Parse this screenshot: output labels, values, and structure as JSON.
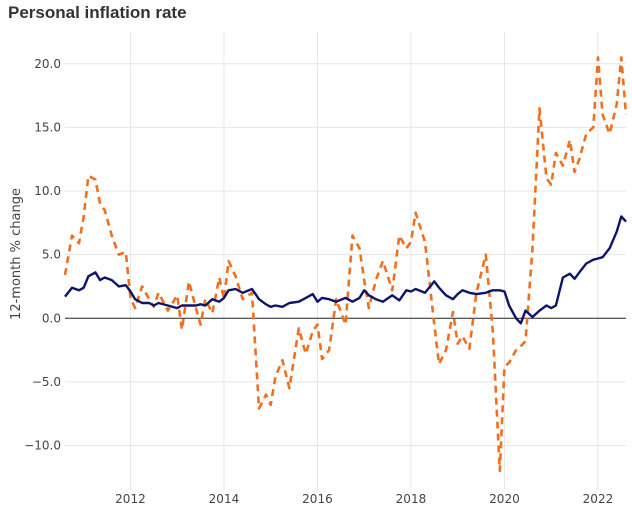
{
  "chart_data": {
    "type": "line",
    "title": "Personal inflation rate",
    "xlabel": "",
    "ylabel": "12-month % change",
    "xlim": [
      2010.6,
      2022.6
    ],
    "ylim": [
      -13.5,
      22.5
    ],
    "grid": true,
    "x_ticks": [
      2012,
      2014,
      2016,
      2018,
      2020,
      2022
    ],
    "y_ticks": [
      20.0,
      15.0,
      10.0,
      5.0,
      0.0,
      -5.0,
      -10.0
    ],
    "x_tick_labels": [
      "2012",
      "2014",
      "2016",
      "2018",
      "2020",
      "2022"
    ],
    "y_tick_labels": [
      "20.0",
      "15.0",
      "10.0",
      "5.0",
      "0.0",
      "−5.0",
      "−10.0"
    ],
    "colors": {
      "series_1": "#0d1469",
      "series_2": "#f07020"
    },
    "series": [
      {
        "style": "solid",
        "color": "#0d1469",
        "x": [
          2010.6,
          2010.75,
          2010.9,
          2011.0,
          2011.1,
          2011.25,
          2011.35,
          2011.45,
          2011.6,
          2011.75,
          2011.9,
          2012.0,
          2012.1,
          2012.25,
          2012.4,
          2012.5,
          2012.6,
          2012.8,
          2013.0,
          2013.1,
          2013.25,
          2013.4,
          2013.5,
          2013.6,
          2013.75,
          2013.9,
          2014.0,
          2014.1,
          2014.25,
          2014.4,
          2014.6,
          2014.75,
          2014.9,
          2015.0,
          2015.1,
          2015.25,
          2015.4,
          2015.6,
          2015.75,
          2015.9,
          2016.0,
          2016.1,
          2016.25,
          2016.4,
          2016.6,
          2016.75,
          2016.9,
          2017.0,
          2017.1,
          2017.25,
          2017.4,
          2017.6,
          2017.75,
          2017.9,
          2018.0,
          2018.1,
          2018.3,
          2018.5,
          2018.6,
          2018.75,
          2018.9,
          2019.0,
          2019.1,
          2019.25,
          2019.4,
          2019.6,
          2019.75,
          2019.9,
          2020.0,
          2020.1,
          2020.25,
          2020.35,
          2020.45,
          2020.6,
          2020.75,
          2020.9,
          2021.0,
          2021.1,
          2021.25,
          2021.4,
          2021.5,
          2021.6,
          2021.75,
          2021.9,
          2022.0,
          2022.1,
          2022.25,
          2022.4,
          2022.5,
          2022.6
        ],
        "y": [
          1.7,
          2.4,
          2.2,
          2.4,
          3.3,
          3.6,
          3.0,
          3.2,
          3.0,
          2.5,
          2.6,
          2.1,
          1.5,
          1.2,
          1.2,
          1.0,
          1.2,
          1.0,
          0.8,
          1.0,
          1.0,
          1.0,
          1.1,
          1.0,
          1.5,
          1.3,
          1.6,
          2.2,
          2.3,
          2.0,
          2.3,
          1.5,
          1.1,
          0.9,
          1.0,
          0.9,
          1.2,
          1.3,
          1.6,
          1.9,
          1.3,
          1.6,
          1.5,
          1.3,
          1.6,
          1.3,
          1.6,
          2.2,
          1.8,
          1.5,
          1.3,
          1.8,
          1.4,
          2.2,
          2.1,
          2.3,
          2.0,
          2.9,
          2.4,
          1.8,
          1.5,
          1.9,
          2.2,
          2.0,
          1.9,
          2.0,
          2.2,
          2.2,
          2.1,
          1.0,
          0.0,
          -0.4,
          0.6,
          0.1,
          0.6,
          1.0,
          0.8,
          1.0,
          3.2,
          3.5,
          3.1,
          3.6,
          4.3,
          4.6,
          4.7,
          4.8,
          5.5,
          6.8,
          8.0,
          7.6
        ]
      },
      {
        "style": "dashed",
        "color": "#f07020",
        "x": [
          2010.6,
          2010.75,
          2010.9,
          2011.0,
          2011.1,
          2011.25,
          2011.35,
          2011.45,
          2011.6,
          2011.75,
          2011.9,
          2012.0,
          2012.1,
          2012.25,
          2012.4,
          2012.5,
          2012.6,
          2012.8,
          2013.0,
          2013.1,
          2013.25,
          2013.4,
          2013.5,
          2013.6,
          2013.75,
          2013.9,
          2014.0,
          2014.1,
          2014.25,
          2014.4,
          2014.6,
          2014.75,
          2014.9,
          2015.0,
          2015.1,
          2015.25,
          2015.4,
          2015.6,
          2015.75,
          2015.9,
          2016.0,
          2016.1,
          2016.25,
          2016.4,
          2016.6,
          2016.75,
          2016.9,
          2017.0,
          2017.1,
          2017.25,
          2017.4,
          2017.6,
          2017.75,
          2017.9,
          2018.0,
          2018.1,
          2018.3,
          2018.5,
          2018.6,
          2018.75,
          2018.9,
          2019.0,
          2019.1,
          2019.25,
          2019.4,
          2019.6,
          2019.75,
          2019.9,
          2020.0,
          2020.1,
          2020.25,
          2020.35,
          2020.45,
          2020.6,
          2020.75,
          2020.9,
          2021.0,
          2021.1,
          2021.25,
          2021.4,
          2021.5,
          2021.6,
          2021.75,
          2021.9,
          2022.0,
          2022.1,
          2022.25,
          2022.4,
          2022.5,
          2022.6
        ],
        "y": [
          3.4,
          6.5,
          5.9,
          8.0,
          11.2,
          10.9,
          9.0,
          8.5,
          6.5,
          5.0,
          5.2,
          1.6,
          0.8,
          2.5,
          1.5,
          0.9,
          2.0,
          0.6,
          1.8,
          -0.9,
          2.9,
          0.8,
          -0.5,
          1.5,
          0.4,
          3.2,
          1.5,
          4.5,
          3.3,
          1.5,
          2.0,
          -7.1,
          -6.0,
          -6.8,
          -4.6,
          -3.3,
          -5.5,
          -0.8,
          -2.8,
          -1.0,
          -0.5,
          -3.2,
          -2.5,
          1.5,
          -0.5,
          6.5,
          5.5,
          3.0,
          0.8,
          3.0,
          4.5,
          2.2,
          6.5,
          5.5,
          6.0,
          8.3,
          6.0,
          -0.5,
          -3.6,
          -2.5,
          0.5,
          -2.0,
          -1.4,
          -2.4,
          2.0,
          5.0,
          -1.0,
          -12.0,
          -3.8,
          -3.5,
          -2.5,
          -2.2,
          -1.8,
          5.5,
          16.5,
          11.0,
          10.5,
          13.0,
          12.0,
          14.0,
          11.5,
          12.5,
          14.5,
          15.0,
          20.5,
          16.0,
          14.5,
          16.8,
          20.5,
          16.0
        ]
      }
    ]
  }
}
